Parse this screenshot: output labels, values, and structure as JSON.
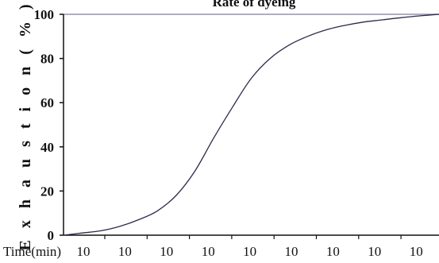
{
  "chart_data": {
    "type": "line",
    "title": "Rate of dyeing",
    "xlabel": "Time(min)",
    "ylabel": "E x h a u s t i o n  ( % )",
    "x_tick_labels": [
      "10",
      "10",
      "10",
      "10",
      "10",
      "10",
      "10",
      "10",
      "10"
    ],
    "y_ticks": [
      0,
      20,
      40,
      60,
      80,
      100
    ],
    "ylim": [
      0,
      100
    ],
    "xlim": [
      0,
      10
    ],
    "grid": false,
    "top_reference_line": 100,
    "colors": {
      "line": "#2b2b4a",
      "axis": "#111111",
      "reference": "#9a8fb0"
    },
    "series": [
      {
        "x": [
          0,
          0.5,
          1.0,
          1.5,
          2.0,
          2.5,
          3.0,
          3.5,
          4.0,
          4.5,
          5.0,
          5.5,
          6.0,
          6.5,
          7.0,
          7.5,
          8.0,
          8.5,
          9.0,
          9.5,
          10.0
        ],
        "values": [
          0,
          1,
          2,
          4,
          7,
          11,
          18,
          29,
          44,
          58,
          71,
          80,
          86,
          90,
          93,
          95,
          96.5,
          97.5,
          98.5,
          99.3,
          100
        ]
      }
    ]
  }
}
